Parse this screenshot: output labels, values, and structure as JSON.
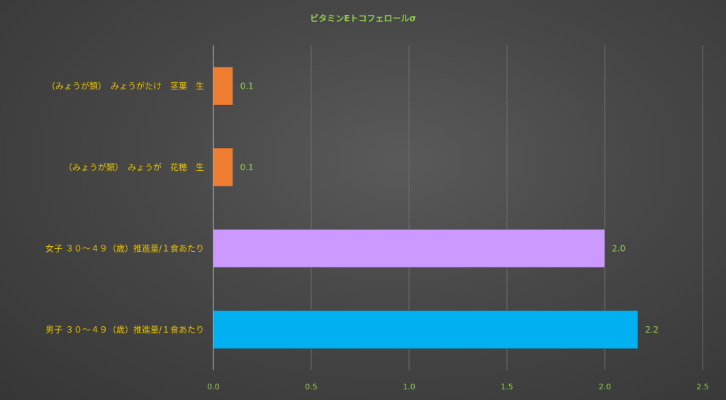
{
  "chart_data": {
    "type": "bar",
    "orientation": "horizontal",
    "title": "ビタミンEトコフェロールσ",
    "categories": [
      "（みょうが類）　みょうがたけ　茎葉　生",
      "（みょうが類）　みょうが　花穂　生",
      "女子 ３０～４９（歳）推進量/１食あたり",
      "男子 ３０～４９（歳）推進量/１食あたり"
    ],
    "values": [
      0.1,
      0.1,
      2.0,
      2.17
    ],
    "data_labels": [
      "0.1",
      "0.1",
      "2.0",
      "2.2"
    ],
    "bar_colors": [
      "#ed7d31",
      "#ed7d31",
      "#cc99ff",
      "#00b0f0"
    ],
    "xlim": [
      0,
      2.5
    ],
    "x_ticks": [
      "0.0",
      "0.5",
      "1.0",
      "1.5",
      "2.0",
      "2.5"
    ],
    "x_tick_values": [
      0,
      0.5,
      1.0,
      1.5,
      2.0,
      2.5
    ],
    "grid": "vertical",
    "legend": "none"
  }
}
